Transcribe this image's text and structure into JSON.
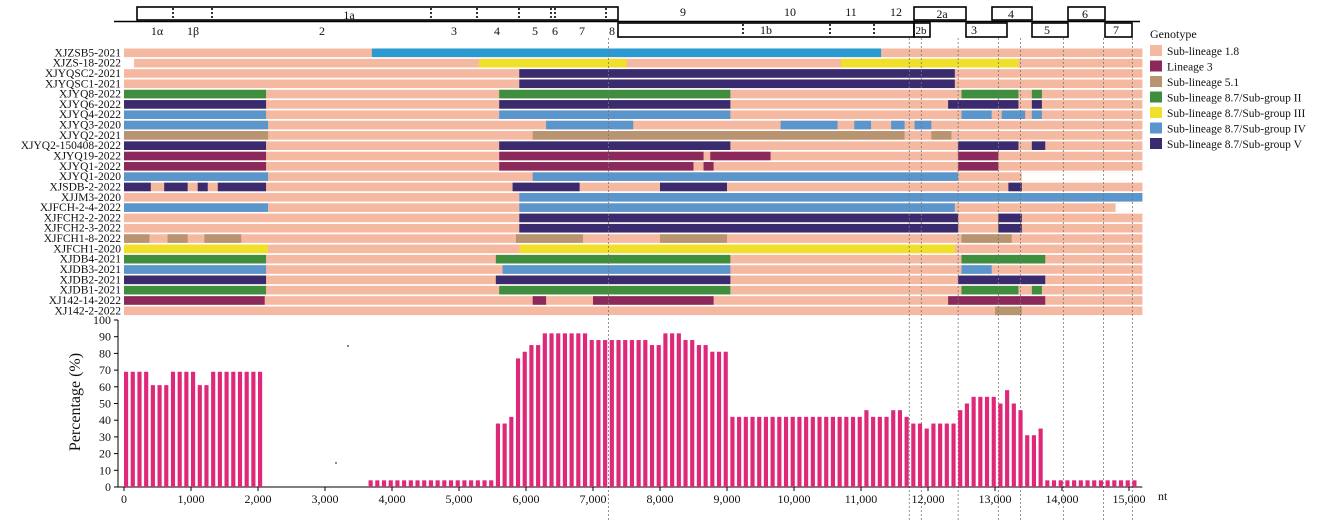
{
  "colors": {
    "sub18": "#f5b8a0",
    "lin3": "#8b2a5a",
    "sub51": "#b89470",
    "g2": "#3e8e3e",
    "g3": "#f0e02a",
    "g4": "#5a96cc",
    "g5": "#3a2a6e",
    "zs5blue": "#2a9ad0",
    "bars": "#e0287a"
  },
  "genome_map": {
    "top_labels": [
      "1a",
      "9",
      "10",
      "11",
      "12",
      "2a",
      "4",
      "6"
    ],
    "top_sub_labels": [
      "1α",
      "1β",
      "2",
      "3",
      "4",
      "5",
      "6",
      "7",
      "8"
    ],
    "bottom_labels": [
      "1b",
      "2b",
      "3",
      "5",
      "7"
    ]
  },
  "legend": {
    "title": "Genotype",
    "items": [
      {
        "label": "Sub-lineage 1.8",
        "color_key": "sub18"
      },
      {
        "label": "Lineage 3",
        "color_key": "lin3"
      },
      {
        "label": "Sub-lineage 5.1",
        "color_key": "sub51"
      },
      {
        "label": "Sub-lineage 8.7/Sub-group II",
        "color_key": "g2"
      },
      {
        "label": "Sub-lineage 8.7/Sub-group III",
        "color_key": "g3"
      },
      {
        "label": "Sub-lineage 8.7/Sub-group IV",
        "color_key": "g4"
      },
      {
        "label": "Sub-lineage 8.7/Sub-group V",
        "color_key": "g5"
      }
    ]
  },
  "chart_data": {
    "type": "bar",
    "title": "",
    "xlabel": "nt",
    "ylabel": "Percentage (%)",
    "xlim": [
      0,
      15200
    ],
    "ylim": [
      0,
      100
    ],
    "x_ticks": [
      0,
      1000,
      2000,
      3000,
      4000,
      5000,
      6000,
      7000,
      8000,
      9000,
      10000,
      11000,
      12000,
      13000,
      14000,
      15000
    ],
    "x_tick_labels": [
      "0",
      "1,000",
      "2,000",
      "3,000",
      "4,000",
      "5,000",
      "6,000",
      "7,000",
      "8,000",
      "9,000",
      "10,000",
      "11,000",
      "12,000",
      "13,000",
      "14,000",
      "15,000"
    ],
    "y_ticks": [
      0,
      10,
      20,
      30,
      40,
      50,
      60,
      70,
      80,
      90,
      100
    ],
    "boundaries_nt": [
      7230,
      11720,
      11900,
      12450,
      13050,
      13380,
      14020,
      14620,
      15050
    ],
    "bar_segments": [
      {
        "start": 0,
        "end": 2100,
        "step": 100,
        "values": [
          69,
          69,
          69,
          69,
          61,
          61,
          61,
          69,
          69,
          69,
          69,
          61,
          61,
          69,
          69,
          69,
          69,
          69,
          69,
          69,
          69
        ]
      },
      {
        "start": 3650,
        "end": 5550,
        "step": 100,
        "values": [
          4,
          4,
          4,
          4,
          4,
          4,
          4,
          4,
          4,
          4,
          4,
          4,
          4,
          4,
          4,
          4,
          4,
          4,
          4
        ]
      },
      {
        "start": 5550,
        "end": 7250,
        "step": 100,
        "values": [
          38,
          38,
          42,
          77,
          81,
          85,
          85,
          92,
          92,
          92,
          92,
          92,
          92,
          92,
          88,
          88,
          88
        ]
      },
      {
        "start": 7250,
        "end": 8950,
        "step": 100,
        "values": [
          88,
          88,
          88,
          88,
          88,
          88,
          85,
          85,
          92,
          92,
          92,
          88,
          88,
          85,
          85,
          81,
          81
        ]
      },
      {
        "start": 8950,
        "end": 11350,
        "step": 100,
        "values": [
          81,
          42,
          42,
          42,
          42,
          42,
          42,
          42,
          42,
          42,
          42,
          42,
          42,
          42,
          42,
          42,
          42,
          42,
          42,
          42,
          42,
          46,
          42,
          42
        ]
      },
      {
        "start": 11350,
        "end": 12350,
        "step": 100,
        "values": [
          42,
          46,
          46,
          42,
          38,
          38,
          35,
          38,
          38,
          38
        ]
      },
      {
        "start": 12350,
        "end": 13850,
        "step": 100,
        "values": [
          38,
          46,
          50,
          54,
          54,
          54,
          54,
          50,
          58,
          50,
          46,
          31,
          31,
          35,
          4
        ]
      },
      {
        "start": 13850,
        "end": 15150,
        "step": 100,
        "values": [
          4,
          4,
          4,
          4,
          4,
          4,
          4,
          4,
          4,
          4,
          4,
          4,
          4
        ]
      }
    ],
    "tracks": [
      {
        "name": "XJZSB5-2021",
        "segments": [
          [
            3700,
            11300,
            "zs5blue"
          ]
        ]
      },
      {
        "name": "XJZS-18-2022",
        "segments": [
          [
            0,
            150,
            "white"
          ],
          [
            5300,
            7500,
            "g3"
          ],
          [
            10700,
            13350,
            "g3"
          ]
        ]
      },
      {
        "name": "XJYQSC2-2021",
        "segments": [
          [
            5900,
            12400,
            "g5"
          ]
        ]
      },
      {
        "name": "XJYQSC1-2021",
        "segments": [
          [
            5900,
            12400,
            "g5"
          ]
        ]
      },
      {
        "name": "XJYQ8-2022",
        "segments": [
          [
            0,
            2120,
            "g2"
          ],
          [
            5600,
            9050,
            "g2"
          ],
          [
            12500,
            13350,
            "g2"
          ],
          [
            13550,
            13700,
            "g2"
          ]
        ]
      },
      {
        "name": "XJYQ6-2022",
        "segments": [
          [
            0,
            2120,
            "g5"
          ],
          [
            5600,
            9050,
            "g5"
          ],
          [
            12300,
            13350,
            "g5"
          ],
          [
            13550,
            13700,
            "g5"
          ]
        ]
      },
      {
        "name": "XJYQ4-2022",
        "segments": [
          [
            0,
            2120,
            "g4"
          ],
          [
            5600,
            9050,
            "g4"
          ],
          [
            12500,
            12950,
            "g4"
          ],
          [
            13100,
            13450,
            "g4"
          ],
          [
            13550,
            13700,
            "g4"
          ]
        ]
      },
      {
        "name": "XJYQ3-2020",
        "segments": [
          [
            0,
            2150,
            "g4"
          ],
          [
            6300,
            7600,
            "g4"
          ],
          [
            9800,
            10650,
            "g4"
          ],
          [
            10900,
            11150,
            "g4"
          ],
          [
            11450,
            11650,
            "g4"
          ],
          [
            11800,
            12050,
            "g4"
          ]
        ]
      },
      {
        "name": "XJYQ2-2021",
        "segments": [
          [
            0,
            2150,
            "sub51"
          ],
          [
            6100,
            11650,
            "sub51"
          ],
          [
            12050,
            12350,
            "sub51"
          ]
        ]
      },
      {
        "name": "XJYQ2-150408-2022",
        "segments": [
          [
            0,
            2120,
            "g5"
          ],
          [
            5600,
            9050,
            "g5"
          ],
          [
            12450,
            13350,
            "g5"
          ],
          [
            13550,
            13750,
            "g5"
          ]
        ]
      },
      {
        "name": "XJYQ19-2022",
        "segments": [
          [
            0,
            2120,
            "lin3"
          ],
          [
            5600,
            8650,
            "lin3"
          ],
          [
            8750,
            9650,
            "lin3"
          ],
          [
            12450,
            13050,
            "lin3"
          ]
        ]
      },
      {
        "name": "XJYQ1-2022",
        "segments": [
          [
            0,
            2120,
            "lin3"
          ],
          [
            5600,
            8500,
            "lin3"
          ],
          [
            8650,
            8800,
            "lin3"
          ],
          [
            12450,
            13050,
            "lin3"
          ]
        ]
      },
      {
        "name": "XJYQ1-2020",
        "segments": [
          [
            0,
            2150,
            "g4"
          ],
          [
            6100,
            12450,
            "g4"
          ],
          [
            13400,
            15200,
            "white"
          ]
        ]
      },
      {
        "name": "XJSDB-2-2022",
        "segments": [
          [
            0,
            400,
            "g5"
          ],
          [
            600,
            950,
            "g5"
          ],
          [
            1100,
            1250,
            "g5"
          ],
          [
            1400,
            2120,
            "g5"
          ],
          [
            5800,
            6800,
            "g5"
          ],
          [
            8000,
            9000,
            "g5"
          ],
          [
            13200,
            13400,
            "g5"
          ]
        ]
      },
      {
        "name": "XJJM3-2020",
        "segments": [
          [
            5900,
            15200,
            "g4"
          ]
        ]
      },
      {
        "name": "XJFCH-2-4-2022",
        "segments": [
          [
            0,
            2150,
            "g4"
          ],
          [
            5900,
            12400,
            "g4"
          ],
          [
            14800,
            15200,
            "white"
          ]
        ]
      },
      {
        "name": "XJFCH2-2-2022",
        "segments": [
          [
            5900,
            12450,
            "g5"
          ],
          [
            13050,
            13400,
            "g5"
          ]
        ]
      },
      {
        "name": "XJFCH2-3-2022",
        "segments": [
          [
            5900,
            12450,
            "g5"
          ],
          [
            13050,
            13400,
            "g5"
          ]
        ]
      },
      {
        "name": "XJFCH1-8-2022",
        "segments": [
          [
            0,
            380,
            "sub51"
          ],
          [
            650,
            950,
            "sub51"
          ],
          [
            1200,
            1750,
            "sub51"
          ],
          [
            5850,
            6850,
            "sub51"
          ],
          [
            8000,
            9000,
            "sub51"
          ],
          [
            12500,
            13250,
            "sub51"
          ]
        ]
      },
      {
        "name": "XJFCH1-2020",
        "segments": [
          [
            0,
            2150,
            "g3"
          ],
          [
            5900,
            12400,
            "g3"
          ]
        ]
      },
      {
        "name": "XJDB4-2021",
        "segments": [
          [
            0,
            2120,
            "g2"
          ],
          [
            5550,
            9050,
            "g2"
          ],
          [
            12500,
            13750,
            "g2"
          ]
        ]
      },
      {
        "name": "XJDB3-2021",
        "segments": [
          [
            0,
            2120,
            "g4"
          ],
          [
            5650,
            9050,
            "g4"
          ],
          [
            12500,
            12950,
            "g4"
          ]
        ]
      },
      {
        "name": "XJDB2-2021",
        "segments": [
          [
            0,
            2120,
            "g5"
          ],
          [
            5550,
            9050,
            "g5"
          ],
          [
            12450,
            13750,
            "g5"
          ]
        ]
      },
      {
        "name": "XJDB1-2021",
        "segments": [
          [
            0,
            2120,
            "g2"
          ],
          [
            5600,
            9050,
            "g2"
          ],
          [
            12500,
            13350,
            "g2"
          ],
          [
            13550,
            13700,
            "g2"
          ]
        ]
      },
      {
        "name": "XJ142-14-2022",
        "segments": [
          [
            0,
            2100,
            "lin3"
          ],
          [
            6100,
            6300,
            "lin3"
          ],
          [
            7000,
            8800,
            "lin3"
          ],
          [
            12300,
            13750,
            "lin3"
          ]
        ]
      },
      {
        "name": "XJ142-2-2022",
        "segments": [
          [
            13000,
            13400,
            "sub51"
          ]
        ]
      }
    ]
  }
}
